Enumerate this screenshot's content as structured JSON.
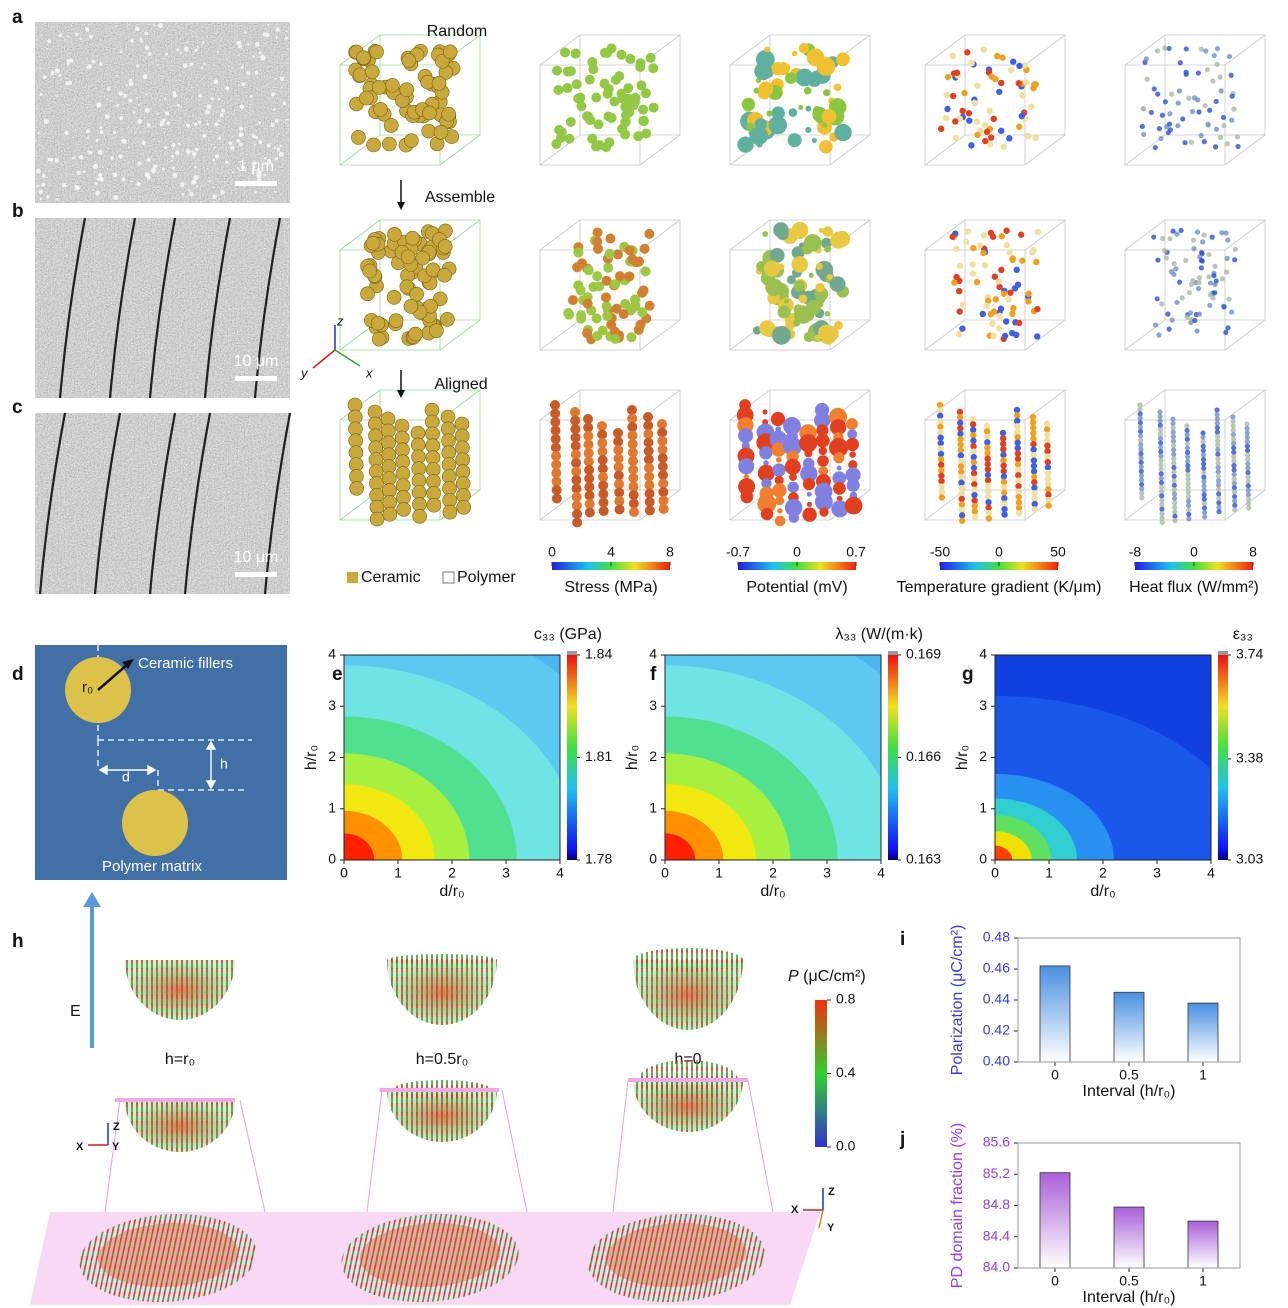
{
  "panel_labels": [
    "a",
    "b",
    "c",
    "d",
    "e",
    "f",
    "g",
    "h",
    "i",
    "j"
  ],
  "sem": {
    "scale_bars": [
      "1 μm",
      "10 μm",
      "10 μm"
    ]
  },
  "structures": {
    "stages": [
      "Random",
      "Assemble",
      "Aligned"
    ],
    "axes": [
      "z",
      "y",
      "x"
    ],
    "legend": [
      "Ceramic",
      "Polymer"
    ]
  },
  "fields": [
    {
      "label": "Stress (MPa)",
      "lim": [
        0,
        8
      ],
      "ticks": [
        0,
        4,
        8
      ]
    },
    {
      "label": "Potential (mV)",
      "lim": [
        -0.7,
        0.7
      ],
      "ticks": [
        -0.7,
        0,
        0.7
      ]
    },
    {
      "label": "Temperature gradient (K/μm)",
      "lim": [
        -50,
        50
      ],
      "ticks": [
        -50,
        0,
        50
      ]
    },
    {
      "label": "Heat flux (W/mm²)",
      "lim": [
        -8,
        8
      ],
      "ticks": [
        -8,
        0,
        8
      ]
    }
  ],
  "schematic": {
    "r0": "r₀",
    "fillers": "Ceramic fillers",
    "d": "d",
    "h": "h",
    "matrix": "Polymer matrix"
  },
  "maps": [
    {
      "title": "c₃₃ (GPa)",
      "xlabel": "d/r₀",
      "ylabel": "h/r₀",
      "xlim": [
        0,
        4
      ],
      "xticks": [
        0,
        1,
        2,
        3,
        4
      ],
      "ylim": [
        0,
        4
      ],
      "yticks": [
        0,
        1,
        2,
        3,
        4
      ],
      "clim": [
        1.78,
        1.84
      ],
      "cticks": [
        1.78,
        1.81,
        1.84
      ]
    },
    {
      "title": "λ₃₃ (W/(m·k)",
      "xlabel": "d/r₀",
      "ylabel": "h/r₀",
      "xlim": [
        0,
        4
      ],
      "xticks": [
        0,
        1,
        2,
        3,
        4
      ],
      "ylim": [
        0,
        4
      ],
      "yticks": [
        0,
        1,
        2,
        3,
        4
      ],
      "clim": [
        0.163,
        0.169
      ],
      "cticks": [
        0.163,
        0.166,
        0.169
      ]
    },
    {
      "title": "ε₃₃",
      "xlabel": "d/r₀",
      "ylabel": "h/r₀",
      "xlim": [
        0,
        4
      ],
      "xticks": [
        0,
        1,
        2,
        3,
        4
      ],
      "ylim": [
        0,
        4
      ],
      "yticks": [
        0,
        1,
        2,
        3,
        4
      ],
      "clim": [
        3.03,
        3.74
      ],
      "cticks": [
        3.03,
        3.38,
        3.74
      ]
    }
  ],
  "domains": {
    "field": "E",
    "cases": [
      "h=r₀",
      "h=0.5r₀",
      "h=0"
    ],
    "colorbar": {
      "symbol": "P",
      "unit": " (μC/cm²)",
      "lim": [
        0,
        0.8
      ],
      "ticks": [
        {
          "value": 0,
          "label": "0.0"
        },
        0.4,
        0.8
      ]
    },
    "axes_small": [
      "Z",
      "X",
      "Y"
    ],
    "axes_plane": [
      "Z",
      "X",
      "Y"
    ]
  },
  "chart_data": [
    {
      "type": "bar",
      "categories": [
        "0",
        "0.5",
        "1"
      ],
      "values": [
        0.462,
        0.445,
        0.438
      ],
      "ylim": [
        0.4,
        0.48
      ],
      "yticks": [
        {
          "value": 0.4,
          "label": "0.40"
        },
        0.42,
        0.44,
        0.46,
        0.48
      ],
      "xlabel": "Interval (h/r₀)",
      "ylabel": "Polarization (μC/cm²)",
      "color": "#4a8fe0",
      "ylabel_color": "#3a3ad0"
    },
    {
      "type": "bar",
      "categories": [
        "0",
        "0.5",
        "1"
      ],
      "values": [
        85.22,
        84.78,
        84.6
      ],
      "ylim": [
        84,
        85.6
      ],
      "yticks": [
        {
          "value": 84,
          "label": "84.0"
        },
        84.4,
        84.8,
        85.2,
        85.6
      ],
      "xlabel": "Interval (h/r₀)",
      "ylabel": "PD domain fraction (%)",
      "color": "#a860d8",
      "ylabel_color": "#9a40d8"
    }
  ]
}
